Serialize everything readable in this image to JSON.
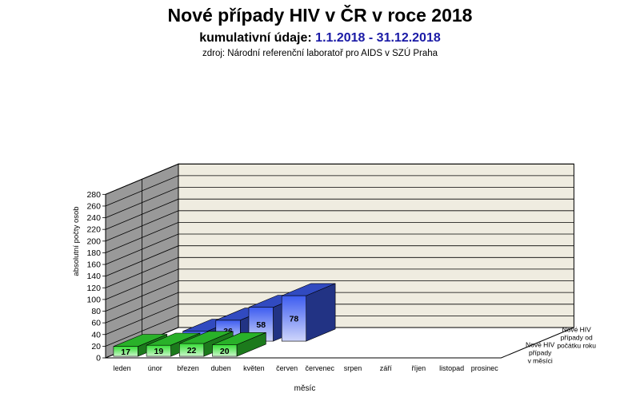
{
  "title": "Nové případy HIV v ČR v roce 2018",
  "subtitle": {
    "label": "kumulativní údaje:",
    "range": "1.1.2018 - 31.12.2018"
  },
  "source": "zdroj:  Národní  referenční  laboratoř  pro AIDS v SZÚ  Praha",
  "colors": {
    "back_wall": "#efece0",
    "side_wall": "#999999",
    "cumulative_series": "#3d5cf0",
    "monthly_series": "#33dd33"
  },
  "chart_data": {
    "type": "bar",
    "categories": [
      "leden",
      "únor",
      "březen",
      "duben",
      "květen",
      "červen",
      "červenec",
      "srpen",
      "září",
      "říjen",
      "listopad",
      "prosinec"
    ],
    "series": [
      {
        "name": "Nové HIV případy od počátku roku",
        "values": [
          null,
          17,
          36,
          58,
          78,
          null,
          null,
          null,
          null,
          null,
          null,
          null
        ]
      },
      {
        "name": "Nové HIV případy v měsíci",
        "values": [
          17,
          19,
          22,
          20,
          null,
          null,
          null,
          null,
          null,
          null,
          null,
          null
        ]
      }
    ],
    "ylabel": "absolutní počty osob",
    "xlabel": "měsíc",
    "yticks": [
      0,
      20,
      40,
      60,
      80,
      100,
      120,
      140,
      160,
      180,
      200,
      220,
      240,
      260,
      280
    ],
    "ylim": [
      0,
      280
    ],
    "grid": true
  }
}
